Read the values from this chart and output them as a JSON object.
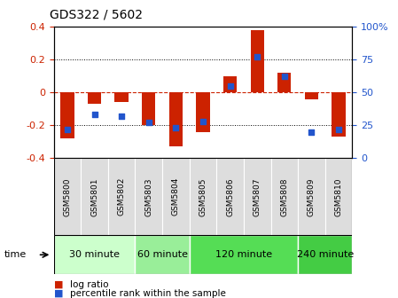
{
  "title": "GDS322 / 5602",
  "samples": [
    "GSM5800",
    "GSM5801",
    "GSM5802",
    "GSM5803",
    "GSM5804",
    "GSM5805",
    "GSM5806",
    "GSM5807",
    "GSM5808",
    "GSM5809",
    "GSM5810"
  ],
  "log_ratio": [
    -0.28,
    -0.07,
    -0.06,
    -0.2,
    -0.33,
    -0.24,
    0.1,
    0.38,
    0.12,
    -0.04,
    -0.27
  ],
  "percentile_rank": [
    22,
    33,
    32,
    27,
    23,
    28,
    55,
    77,
    62,
    20,
    22
  ],
  "bar_color": "#cc2200",
  "dot_color": "#2255cc",
  "ylim_left": [
    -0.4,
    0.4
  ],
  "yticks_left": [
    -0.4,
    -0.2,
    0.0,
    0.2,
    0.4
  ],
  "ytick_labels_right": [
    "0",
    "25",
    "50",
    "75",
    "100%"
  ],
  "time_groups": [
    {
      "label": "30 minute",
      "start": 0,
      "end": 3,
      "color": "#ccffcc"
    },
    {
      "label": "60 minute",
      "start": 3,
      "end": 5,
      "color": "#99ee99"
    },
    {
      "label": "120 minute",
      "start": 5,
      "end": 9,
      "color": "#55dd55"
    },
    {
      "label": "240 minute",
      "start": 9,
      "end": 11,
      "color": "#44cc44"
    }
  ],
  "legend_log_ratio": "log ratio",
  "legend_percentile": "percentile rank within the sample",
  "background_color": "#ffffff"
}
